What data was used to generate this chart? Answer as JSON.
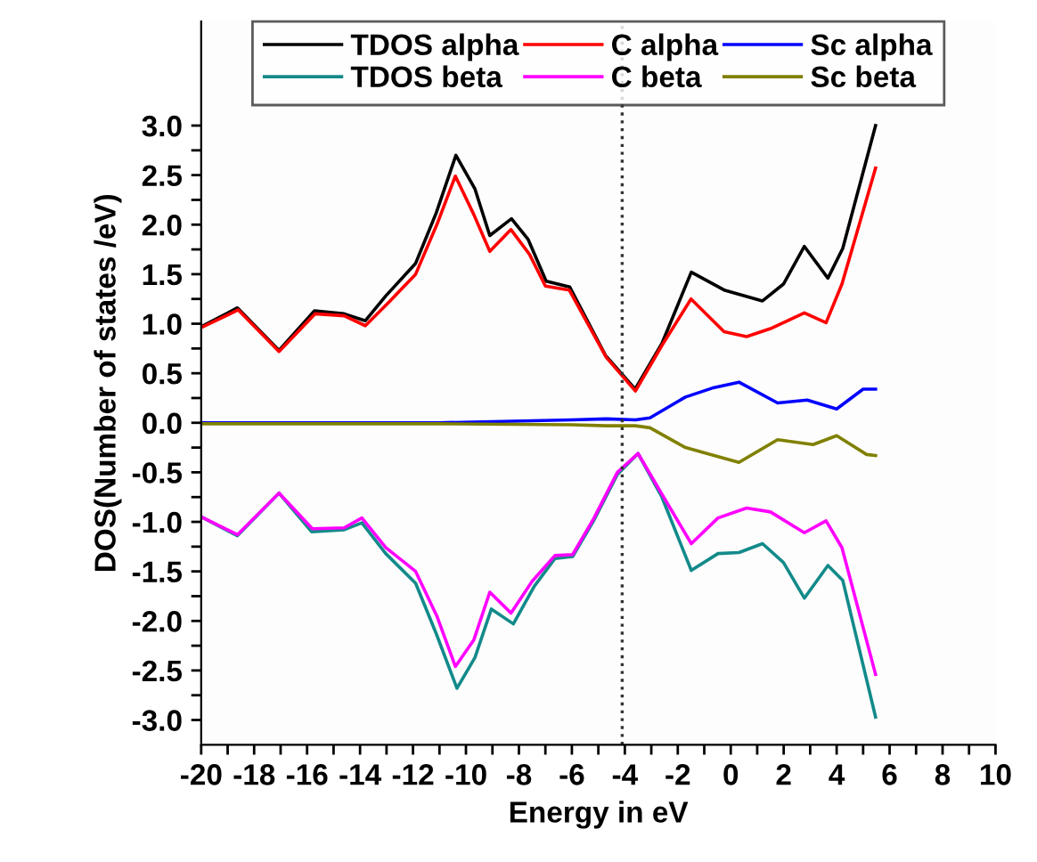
{
  "chart_data": {
    "type": "line",
    "xlabel": "Energy in eV",
    "ylabel": "DOS(Number of states /eV)",
    "xlim": [
      -20,
      10
    ],
    "ylim": [
      -3.25,
      4.05
    ],
    "xticks": [
      -20,
      {
        "value": -19,
        "label": null
      },
      -18,
      {
        "value": -17,
        "label": null
      },
      -16,
      {
        "value": -15,
        "label": null
      },
      -14,
      {
        "value": -13,
        "label": null
      },
      -12,
      {
        "value": -11,
        "label": null
      },
      -10,
      {
        "value": -9,
        "label": null
      },
      -8,
      {
        "value": -7,
        "label": null
      },
      -6,
      {
        "value": -5,
        "label": null
      },
      -4,
      {
        "value": -3,
        "label": null
      },
      -2,
      {
        "value": -1,
        "label": null
      },
      0,
      {
        "value": 1,
        "label": null
      },
      2,
      {
        "value": 3,
        "label": null
      },
      4,
      {
        "value": 5,
        "label": null
      },
      6,
      {
        "value": 7,
        "label": null
      },
      8,
      {
        "value": 9,
        "label": null
      },
      10
    ],
    "yticks": [
      {
        "value": -3.0,
        "label": "-3.0"
      },
      {
        "value": -2.75,
        "label": null
      },
      {
        "value": -2.5,
        "label": "-2.5"
      },
      {
        "value": -2.25,
        "label": null
      },
      {
        "value": -2.0,
        "label": "-2.0"
      },
      {
        "value": -1.75,
        "label": null
      },
      {
        "value": -1.5,
        "label": "-1.5"
      },
      {
        "value": -1.25,
        "label": null
      },
      {
        "value": -1.0,
        "label": "-1.0"
      },
      {
        "value": -0.75,
        "label": null
      },
      {
        "value": -0.5,
        "label": "-0.5"
      },
      {
        "value": -0.25,
        "label": null
      },
      {
        "value": 0.0,
        "label": "0.0"
      },
      {
        "value": 0.25,
        "label": null
      },
      {
        "value": 0.5,
        "label": "0.5"
      },
      {
        "value": 0.75,
        "label": null
      },
      {
        "value": 1.0,
        "label": "1.0"
      },
      {
        "value": 1.25,
        "label": null
      },
      {
        "value": 1.5,
        "label": "1.5"
      },
      {
        "value": 1.75,
        "label": null
      },
      {
        "value": 2.0,
        "label": "2.0"
      },
      {
        "value": 2.25,
        "label": null
      },
      {
        "value": 2.5,
        "label": "2.5"
      },
      {
        "value": 2.75,
        "label": null
      },
      {
        "value": 3.0,
        "label": "3.0"
      }
    ],
    "grid": false,
    "legend": "top",
    "marker": "none",
    "line_style": "solid",
    "ref_lines": [
      {
        "axis": "x",
        "value": -4.1,
        "label": null,
        "color": "#333333",
        "line_style": "dotted"
      }
    ],
    "series": [
      {
        "name": "TDOS alpha",
        "color": "#000000",
        "x": [
          -20,
          -18.63,
          -17.06,
          -15.72,
          -14.6,
          -13.8,
          -13.03,
          -11.9,
          -11.12,
          -10.38,
          -9.66,
          -9.1,
          -8.28,
          -7.65,
          -6.97,
          -6.08,
          -4.73,
          -3.61,
          -2.6,
          -1.49,
          -0.25,
          1.2,
          1.99,
          2.78,
          3.67,
          4.23,
          5.47
        ],
        "values": [
          0.97,
          1.16,
          0.73,
          1.13,
          1.1,
          1.03,
          1.28,
          1.61,
          2.12,
          2.7,
          2.36,
          1.89,
          2.06,
          1.85,
          1.43,
          1.37,
          0.68,
          0.34,
          0.8,
          1.52,
          1.34,
          1.23,
          1.4,
          1.78,
          1.46,
          1.76,
          3.0
        ]
      },
      {
        "name": "TDOS beta",
        "color": "#138a8a",
        "x": [
          -20,
          -18.63,
          -17.06,
          -15.83,
          -14.6,
          -13.93,
          -13.03,
          -11.9,
          -11.12,
          -10.34,
          -9.66,
          -9.04,
          -8.21,
          -7.42,
          -6.64,
          -5.97,
          -5.18,
          -4.28,
          -3.5,
          -2.6,
          -1.49,
          -0.48,
          0.31,
          1.2,
          1.99,
          2.78,
          3.67,
          4.23,
          5.47
        ],
        "values": [
          -0.95,
          -1.14,
          -0.71,
          -1.1,
          -1.08,
          -1.01,
          -1.32,
          -1.62,
          -2.13,
          -2.68,
          -2.37,
          -1.88,
          -2.03,
          -1.65,
          -1.37,
          -1.35,
          -0.99,
          -0.52,
          -0.31,
          -0.75,
          -1.49,
          -1.32,
          -1.31,
          -1.22,
          -1.41,
          -1.77,
          -1.44,
          -1.59,
          -2.97
        ]
      },
      {
        "name": "C alpha",
        "color": "#ff0000",
        "x": [
          -20,
          -18.6,
          -17.06,
          -15.7,
          -14.6,
          -13.8,
          -12.9,
          -11.9,
          -11.1,
          -10.4,
          -9.7,
          -9.1,
          -8.3,
          -7.6,
          -7.0,
          -6.1,
          -4.7,
          -3.6,
          -2.6,
          -1.5,
          -0.25,
          0.6,
          1.5,
          2.78,
          3.6,
          4.2,
          5.47
        ],
        "values": [
          0.96,
          1.14,
          0.72,
          1.1,
          1.08,
          0.98,
          1.22,
          1.5,
          2.0,
          2.49,
          2.1,
          1.73,
          1.95,
          1.7,
          1.38,
          1.34,
          0.66,
          0.32,
          0.78,
          1.25,
          0.92,
          0.87,
          0.95,
          1.11,
          1.01,
          1.4,
          2.57
        ]
      },
      {
        "name": "C beta",
        "color": "#ff00ff",
        "x": [
          -20,
          -18.63,
          -17.06,
          -15.8,
          -14.6,
          -13.93,
          -13.03,
          -11.9,
          -11.1,
          -10.4,
          -9.7,
          -9.1,
          -8.3,
          -7.5,
          -6.64,
          -5.97,
          -5.18,
          -4.28,
          -3.5,
          -2.6,
          -1.49,
          -0.48,
          0.6,
          1.5,
          2.78,
          3.6,
          4.2,
          5.47
        ],
        "values": [
          -0.95,
          -1.13,
          -0.71,
          -1.07,
          -1.06,
          -0.96,
          -1.26,
          -1.5,
          -1.95,
          -2.46,
          -2.19,
          -1.71,
          -1.92,
          -1.6,
          -1.34,
          -1.33,
          -0.97,
          -0.5,
          -0.31,
          -0.72,
          -1.22,
          -0.96,
          -0.86,
          -0.9,
          -1.11,
          -0.99,
          -1.26,
          -2.54
        ]
      },
      {
        "name": "Sc alpha",
        "color": "#0000ff",
        "x": [
          -20,
          -11,
          -6,
          -4.7,
          -3.6,
          -3.05,
          -1.71,
          -0.7,
          0.31,
          1.77,
          2.89,
          4.0,
          5.0,
          5.47
        ],
        "values": [
          0.0,
          0.0,
          0.03,
          0.04,
          0.03,
          0.05,
          0.26,
          0.35,
          0.41,
          0.2,
          0.23,
          0.14,
          0.34,
          0.34
        ]
      },
      {
        "name": "Sc beta",
        "color": "#808000",
        "x": [
          -20,
          -11,
          -6,
          -4.7,
          -3.6,
          -3.05,
          -1.71,
          0.31,
          1.77,
          3.11,
          4.0,
          5.13,
          5.47
        ],
        "values": [
          -0.01,
          -0.01,
          -0.02,
          -0.03,
          -0.03,
          -0.05,
          -0.25,
          -0.4,
          -0.17,
          -0.22,
          -0.13,
          -0.32,
          -0.33
        ]
      }
    ]
  }
}
